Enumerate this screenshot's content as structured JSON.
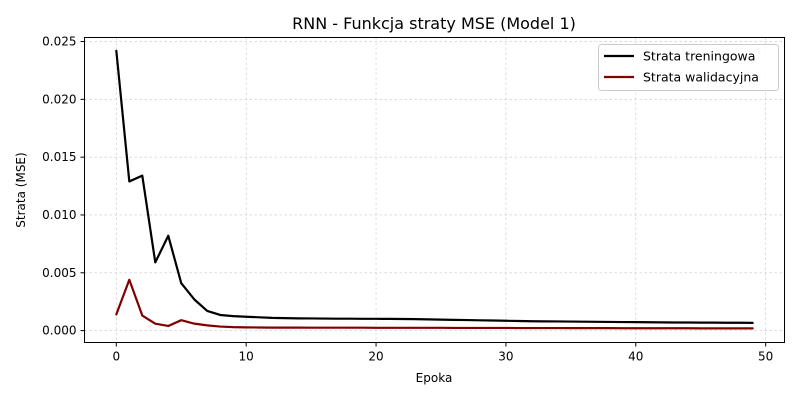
{
  "chart_data": {
    "type": "line",
    "title": "RNN - Funkcja straty MSE (Model 1)",
    "xlabel": "Epoka",
    "ylabel": "Strata (MSE)",
    "xlim": [
      -2.45,
      51.45
    ],
    "ylim": [
      -0.00103,
      0.02535
    ],
    "xticks": [
      0,
      10,
      20,
      30,
      40,
      50
    ],
    "xtick_labels": [
      "0",
      "10",
      "20",
      "30",
      "40",
      "50"
    ],
    "yticks": [
      0.0,
      0.005,
      0.01,
      0.015,
      0.02,
      0.025
    ],
    "ytick_labels": [
      "0.000",
      "0.005",
      "0.010",
      "0.015",
      "0.020",
      "0.025"
    ],
    "grid": true,
    "legend_position": "top-right",
    "x": [
      0,
      1,
      2,
      3,
      4,
      5,
      6,
      7,
      8,
      9,
      10,
      11,
      12,
      13,
      14,
      15,
      16,
      17,
      18,
      19,
      20,
      21,
      22,
      23,
      24,
      25,
      26,
      27,
      28,
      29,
      30,
      31,
      32,
      33,
      34,
      35,
      36,
      37,
      38,
      39,
      40,
      41,
      42,
      43,
      44,
      45,
      46,
      47,
      48,
      49
    ],
    "series": [
      {
        "name": "Strata treningowa",
        "color": "#000000",
        "values": [
          0.0242,
          0.0129,
          0.0134,
          0.0059,
          0.0082,
          0.0041,
          0.0027,
          0.0017,
          0.00135,
          0.00125,
          0.0012,
          0.00115,
          0.0011,
          0.00108,
          0.00106,
          0.00105,
          0.00104,
          0.00103,
          0.00103,
          0.00102,
          0.00102,
          0.00101,
          0.001,
          0.00099,
          0.00097,
          0.00095,
          0.00093,
          0.00091,
          0.00089,
          0.00087,
          0.00085,
          0.00083,
          0.00081,
          0.0008,
          0.00079,
          0.00078,
          0.00077,
          0.00076,
          0.00075,
          0.00074,
          0.00073,
          0.00072,
          0.00071,
          0.0007,
          0.0007,
          0.00069,
          0.00069,
          0.00068,
          0.00068,
          0.00067
        ]
      },
      {
        "name": "Strata walidacyjna",
        "color": "#800000",
        "values": [
          0.0014,
          0.0044,
          0.0013,
          0.0006,
          0.0004,
          0.0009,
          0.0006,
          0.00045,
          0.00035,
          0.0003,
          0.00028,
          0.00027,
          0.00026,
          0.00026,
          0.00026,
          0.00025,
          0.00025,
          0.00025,
          0.00025,
          0.00025,
          0.00024,
          0.00024,
          0.00024,
          0.00024,
          0.00024,
          0.00024,
          0.00023,
          0.00023,
          0.00023,
          0.00023,
          0.00023,
          0.00022,
          0.00022,
          0.00022,
          0.00022,
          0.00021,
          0.00021,
          0.00021,
          0.00021,
          0.0002,
          0.0002,
          0.0002,
          0.0002,
          0.0002,
          0.0002,
          0.00019,
          0.00019,
          0.00019,
          0.00019,
          0.00019
        ]
      }
    ]
  }
}
